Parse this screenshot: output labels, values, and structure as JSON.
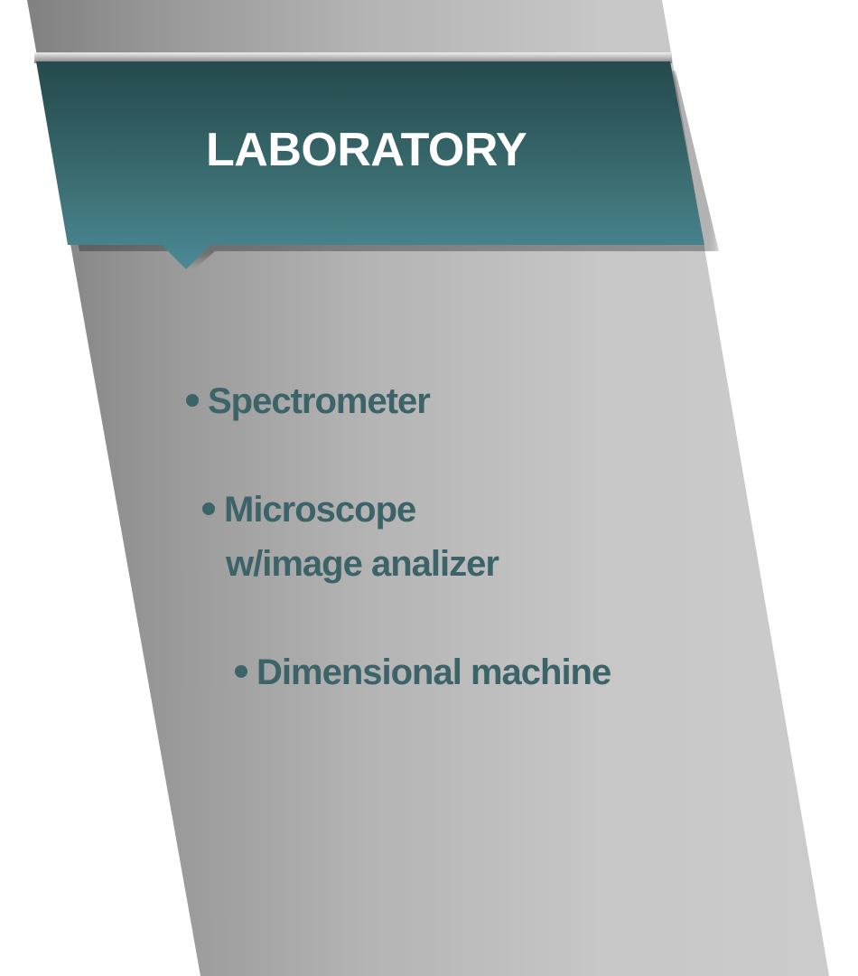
{
  "banner": {
    "title": "LABORATORY"
  },
  "items": [
    {
      "lines": [
        "Spectrometer"
      ]
    },
    {
      "lines": [
        "Microscope",
        "w/image analizer"
      ]
    },
    {
      "lines": [
        "Dimensional machine"
      ]
    }
  ],
  "colors": {
    "banner_top": "#264a4e",
    "banner_bottom": "#4a8a97",
    "item_text": "#3c6468",
    "panel_light": "#cccccc",
    "panel_dark": "#7c7c7c",
    "title_text": "#ffffff"
  }
}
